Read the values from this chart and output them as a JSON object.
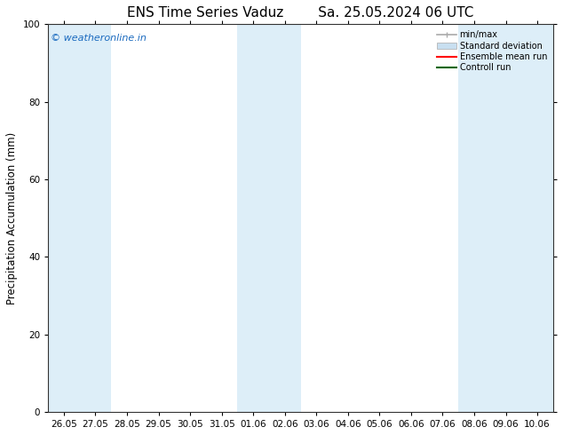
{
  "title": "ENS Time Series Vaduz        Sa. 25.05.2024 06 UTC",
  "ylabel": "Precipitation Accumulation (mm)",
  "ylim": [
    0,
    100
  ],
  "yticks": [
    0,
    20,
    40,
    60,
    80,
    100
  ],
  "x_labels": [
    "26.05",
    "27.05",
    "28.05",
    "29.05",
    "30.05",
    "31.05",
    "01.06",
    "02.06",
    "03.06",
    "04.06",
    "05.06",
    "06.06",
    "07.06",
    "08.06",
    "09.06",
    "10.06"
  ],
  "shaded_columns": [
    0,
    1,
    6,
    7,
    13,
    14,
    15
  ],
  "band_color": "#ddeef8",
  "background_color": "#ffffff",
  "watermark_text": "© weatheronline.in",
  "watermark_color": "#1a6abf",
  "title_fontsize": 11,
  "tick_fontsize": 7.5,
  "ylabel_fontsize": 8.5,
  "figsize": [
    6.34,
    4.9
  ],
  "dpi": 100,
  "legend_minmax_color": "#aaaaaa",
  "legend_std_color": "#c8dff0",
  "legend_ens_color": "#ff0000",
  "legend_ctrl_color": "#006600"
}
